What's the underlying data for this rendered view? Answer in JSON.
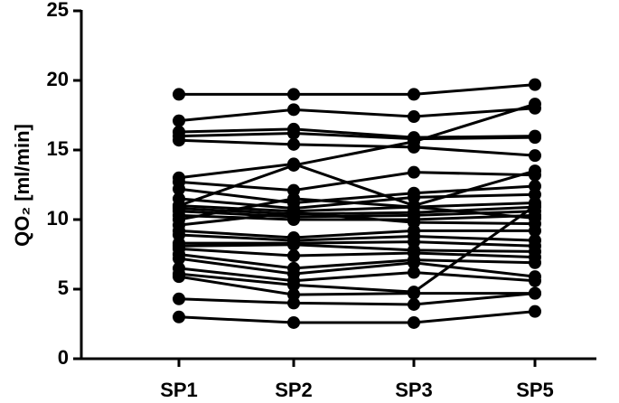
{
  "chart_data": {
    "type": "line",
    "y_label": "QO₂ [ml/min]",
    "categories": [
      "SP1",
      "SP2",
      "SP3",
      "SP5"
    ],
    "color": "#000000",
    "ylim": [
      0,
      25
    ],
    "yticks": [
      0,
      5,
      10,
      15,
      20,
      25
    ],
    "grid": false,
    "series": [
      {
        "values": [
          19.0,
          19.0,
          19.0,
          19.7
        ]
      },
      {
        "values": [
          17.1,
          17.9,
          17.4,
          18.0
        ]
      },
      {
        "values": [
          16.3,
          16.5,
          15.9,
          16.0
        ]
      },
      {
        "values": [
          16.0,
          16.2,
          15.8,
          15.9
        ]
      },
      {
        "values": [
          15.7,
          15.4,
          15.2,
          14.6
        ]
      },
      {
        "values": [
          11.0,
          13.9,
          15.6,
          18.3
        ]
      },
      {
        "values": [
          13.0,
          14.0,
          11.0,
          13.5
        ]
      },
      {
        "values": [
          12.7,
          12.1,
          13.4,
          13.2
        ]
      },
      {
        "values": [
          12.2,
          11.2,
          11.9,
          12.4
        ]
      },
      {
        "values": [
          11.5,
          10.8,
          11.6,
          11.8
        ]
      },
      {
        "values": [
          11.0,
          10.6,
          10.9,
          11.2
        ]
      },
      {
        "values": [
          10.8,
          10.4,
          10.5,
          10.9
        ]
      },
      {
        "values": [
          10.6,
          10.2,
          10.3,
          10.6
        ]
      },
      {
        "values": [
          10.3,
          10.0,
          10.0,
          10.3
        ]
      },
      {
        "values": [
          10.0,
          11.5,
          10.9,
          10.1
        ]
      },
      {
        "values": [
          9.6,
          10.5,
          9.8,
          9.7
        ]
      },
      {
        "values": [
          9.2,
          8.7,
          9.2,
          9.2
        ]
      },
      {
        "values": [
          8.9,
          8.5,
          8.8,
          8.5
        ]
      },
      {
        "values": [
          8.3,
          8.3,
          8.4,
          8.1
        ]
      },
      {
        "values": [
          8.1,
          8.2,
          7.8,
          7.7
        ]
      },
      {
        "values": [
          7.9,
          7.4,
          7.6,
          7.3
        ]
      },
      {
        "values": [
          7.5,
          6.5,
          7.1,
          6.9
        ]
      },
      {
        "values": [
          7.2,
          6.1,
          6.9,
          5.9
        ]
      },
      {
        "values": [
          6.5,
          5.6,
          6.2,
          5.6
        ]
      },
      {
        "values": [
          6.1,
          5.3,
          4.8,
          11.0
        ]
      },
      {
        "values": [
          5.9,
          4.6,
          4.7,
          4.7
        ]
      },
      {
        "values": [
          4.3,
          4.0,
          3.9,
          4.7
        ]
      },
      {
        "values": [
          3.0,
          2.6,
          2.6,
          3.4
        ]
      }
    ]
  }
}
